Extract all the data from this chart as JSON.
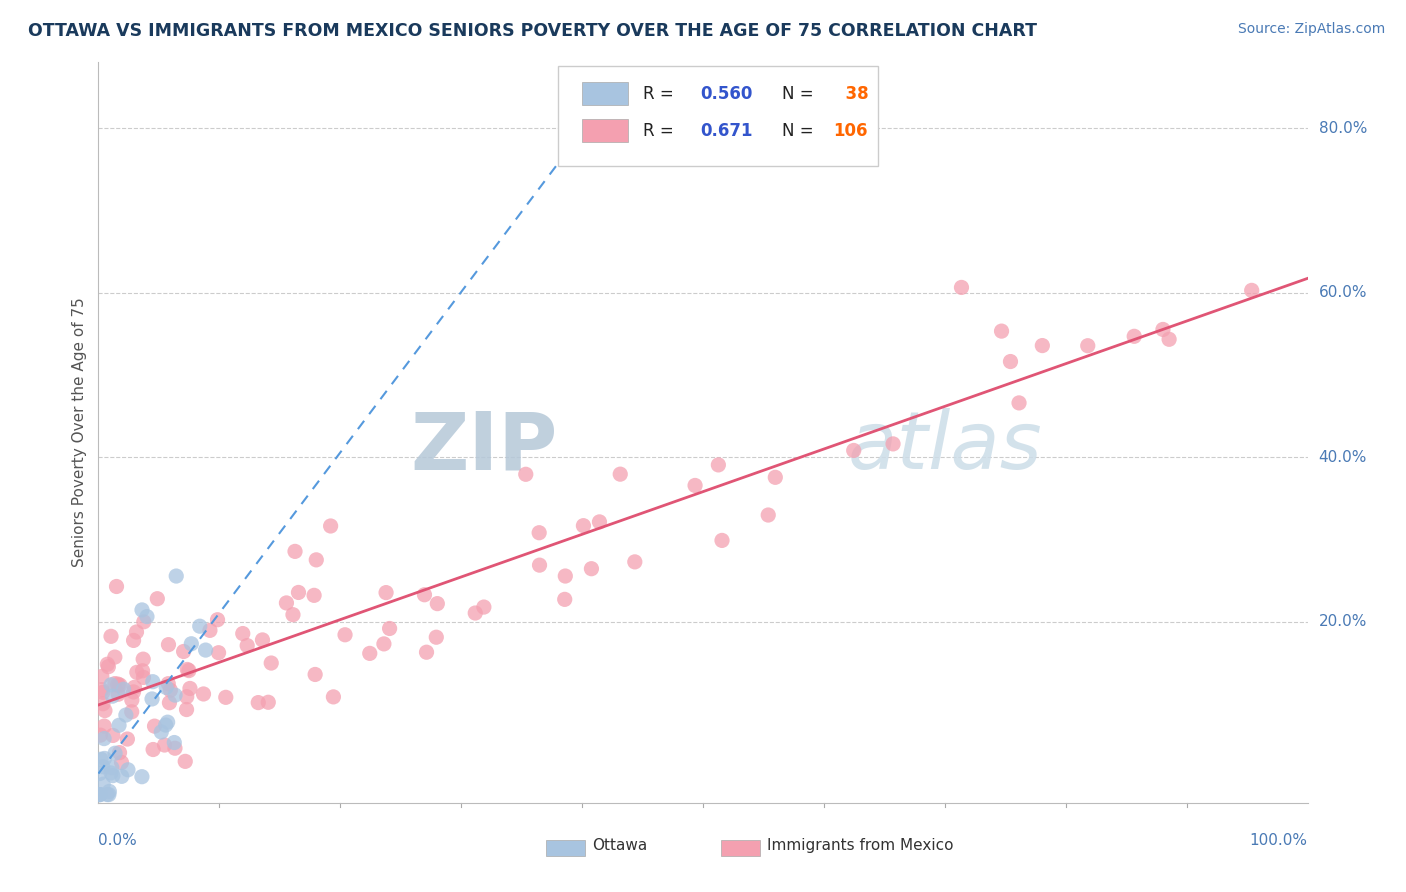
{
  "title": "OTTAWA VS IMMIGRANTS FROM MEXICO SENIORS POVERTY OVER THE AGE OF 75 CORRELATION CHART",
  "source": "Source: ZipAtlas.com",
  "ylabel": "Seniors Poverty Over the Age of 75",
  "xlim": [
    0,
    1.0
  ],
  "ylim": [
    -0.02,
    0.88
  ],
  "ottawa_R": 0.56,
  "ottawa_N": 38,
  "mexico_R": 0.671,
  "mexico_N": 106,
  "ottawa_color": "#a8c4e0",
  "mexico_color": "#f4a0b0",
  "ottawa_line_color": "#5599dd",
  "mexico_line_color": "#e05575",
  "watermark_ZIP_color": "#b8cfe0",
  "watermark_atlas_color": "#c8d8e8",
  "background_color": "#ffffff",
  "title_color": "#1a3a5c",
  "source_color": "#4a7ab5",
  "legend_R_label_color": "#000000",
  "legend_val_color": "#3355cc",
  "legend_N_val_color": "#ff6600",
  "ytick_color": "#4a7ab5",
  "xtick_color": "#4a7ab5"
}
